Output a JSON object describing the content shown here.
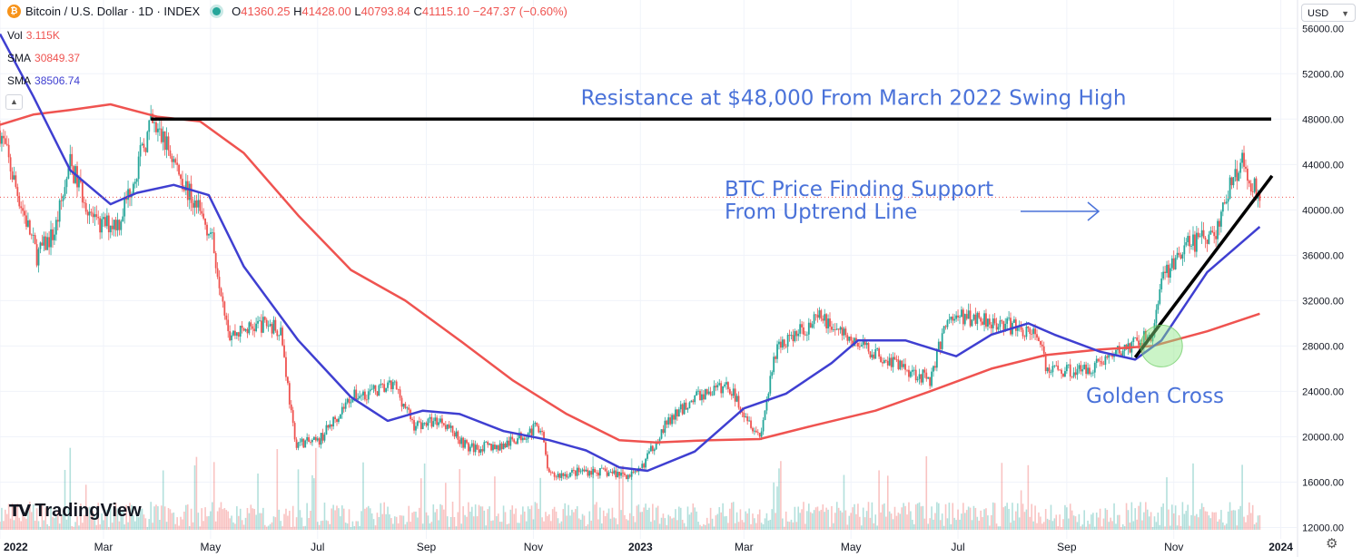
{
  "header": {
    "coin_glyph": "₿",
    "title": "Bitcoin / U.S. Dollar · 1D · INDEX",
    "ohlc": {
      "o_label": "O",
      "o": "41360.25",
      "h_label": "H",
      "h": "41428.00",
      "l_label": "L",
      "l": "40793.84",
      "c_label": "C",
      "c": "41115.10",
      "change": "−247.37 (−0.60%)"
    }
  },
  "legend": [
    {
      "label": "Vol",
      "value": "3.115K",
      "color": "#ef5350"
    },
    {
      "label": "SMA",
      "value": "30849.37",
      "color": "#ef5350"
    },
    {
      "label": "SMA",
      "value": "38506.74",
      "color": "#3f3fd1"
    }
  ],
  "currency": "USD",
  "branding": {
    "mark": "TV",
    "name": "TradingView"
  },
  "icons": {
    "coin": "bitcoin-icon",
    "status": "status-dot-icon",
    "collapse": "chevron-up-icon",
    "dropdown": "chevron-down-icon",
    "settings": "gear-icon"
  },
  "chart_data": {
    "type": "line",
    "x_range": [
      "2022-01-01",
      "2024-01-10"
    ],
    "y_range": [
      11000,
      58500
    ],
    "y_ticks": [
      12000,
      16000,
      20000,
      24000,
      28000,
      32000,
      36000,
      40000,
      44000,
      48000,
      52000,
      56000
    ],
    "y_tick_labels": [
      "12000.00",
      "16000.00",
      "20000.00",
      "24000.00",
      "28000.00",
      "32000.00",
      "36000.00",
      "40000.00",
      "44000.00",
      "48000.00",
      "52000.00",
      "56000.00"
    ],
    "x_ticks": [
      {
        "date": "2022-01-01",
        "label": "2022",
        "bold": true
      },
      {
        "date": "2022-03-01",
        "label": "Mar"
      },
      {
        "date": "2022-05-01",
        "label": "May"
      },
      {
        "date": "2022-07-01",
        "label": "Jul"
      },
      {
        "date": "2022-09-01",
        "label": "Sep"
      },
      {
        "date": "2022-11-01",
        "label": "Nov"
      },
      {
        "date": "2023-01-01",
        "label": "2023",
        "bold": true
      },
      {
        "date": "2023-03-01",
        "label": "Mar"
      },
      {
        "date": "2023-05-01",
        "label": "May"
      },
      {
        "date": "2023-07-01",
        "label": "Jul"
      },
      {
        "date": "2023-09-01",
        "label": "Sep"
      },
      {
        "date": "2023-11-01",
        "label": "Nov"
      },
      {
        "date": "2024-01-01",
        "label": "2024",
        "bold": true
      }
    ],
    "price_path": [
      [
        "2022-01-01",
        47000
      ],
      [
        "2022-01-10",
        42000
      ],
      [
        "2022-01-22",
        36000
      ],
      [
        "2022-02-01",
        38000
      ],
      [
        "2022-02-10",
        44000
      ],
      [
        "2022-02-25",
        38500
      ],
      [
        "2022-03-10",
        39000
      ],
      [
        "2022-03-28",
        47500
      ],
      [
        "2022-04-05",
        46000
      ],
      [
        "2022-04-20",
        41000
      ],
      [
        "2022-05-01",
        38000
      ],
      [
        "2022-05-12",
        29000
      ],
      [
        "2022-06-01",
        30000
      ],
      [
        "2022-06-10",
        29500
      ],
      [
        "2022-06-18",
        19500
      ],
      [
        "2022-07-01",
        19500
      ],
      [
        "2022-07-20",
        23500
      ],
      [
        "2022-08-14",
        24500
      ],
      [
        "2022-08-25",
        21000
      ],
      [
        "2022-09-10",
        21500
      ],
      [
        "2022-09-25",
        19000
      ],
      [
        "2022-10-15",
        19200
      ],
      [
        "2022-11-05",
        21000
      ],
      [
        "2022-11-10",
        16500
      ],
      [
        "2022-12-01",
        17000
      ],
      [
        "2022-12-30",
        16600
      ],
      [
        "2023-01-15",
        21000
      ],
      [
        "2023-02-01",
        23500
      ],
      [
        "2023-02-20",
        24500
      ],
      [
        "2023-03-10",
        20000
      ],
      [
        "2023-03-20",
        28000
      ],
      [
        "2023-04-14",
        30500
      ],
      [
        "2023-05-01",
        28500
      ],
      [
        "2023-05-20",
        27000
      ],
      [
        "2023-06-15",
        25000
      ],
      [
        "2023-06-25",
        30500
      ],
      [
        "2023-07-15",
        30500
      ],
      [
        "2023-08-16",
        29000
      ],
      [
        "2023-08-20",
        26000
      ],
      [
        "2023-09-10",
        25800
      ],
      [
        "2023-10-01",
        27500
      ],
      [
        "2023-10-20",
        29000
      ],
      [
        "2023-10-25",
        34000
      ],
      [
        "2023-11-10",
        37000
      ],
      [
        "2023-11-25",
        38000
      ],
      [
        "2023-12-05",
        43000
      ],
      [
        "2023-12-10",
        44000
      ],
      [
        "2023-12-20",
        41115
      ]
    ],
    "series": [
      {
        "name": "SMA",
        "color": "#ef5350",
        "points": [
          [
            "2022-01-01",
            47500
          ],
          [
            "2022-01-20",
            48400
          ],
          [
            "2022-02-10",
            48800
          ],
          [
            "2022-03-05",
            49300
          ],
          [
            "2022-04-01",
            48200
          ],
          [
            "2022-04-25",
            47800
          ],
          [
            "2022-05-20",
            45000
          ],
          [
            "2022-06-20",
            39500
          ],
          [
            "2022-07-20",
            34700
          ],
          [
            "2022-08-20",
            32000
          ],
          [
            "2022-09-20",
            28500
          ],
          [
            "2022-10-20",
            25000
          ],
          [
            "2022-11-20",
            22000
          ],
          [
            "2022-12-20",
            19700
          ],
          [
            "2023-01-10",
            19500
          ],
          [
            "2023-02-10",
            19700
          ],
          [
            "2023-03-10",
            19800
          ],
          [
            "2023-04-10",
            21000
          ],
          [
            "2023-05-15",
            22300
          ],
          [
            "2023-06-15",
            24000
          ],
          [
            "2023-07-20",
            26000
          ],
          [
            "2023-08-20",
            27200
          ],
          [
            "2023-09-20",
            27700
          ],
          [
            "2023-10-20",
            28000
          ],
          [
            "2023-11-20",
            29300
          ],
          [
            "2023-12-20",
            30849
          ]
        ]
      },
      {
        "name": "SMA",
        "color": "#3f3fd1",
        "points": [
          [
            "2022-01-01",
            55500
          ],
          [
            "2022-01-20",
            50000
          ],
          [
            "2022-02-10",
            43500
          ],
          [
            "2022-03-05",
            40500
          ],
          [
            "2022-03-20",
            41500
          ],
          [
            "2022-04-10",
            42200
          ],
          [
            "2022-04-30",
            41300
          ],
          [
            "2022-05-20",
            35000
          ],
          [
            "2022-06-20",
            28500
          ],
          [
            "2022-07-20",
            23500
          ],
          [
            "2022-08-10",
            21400
          ],
          [
            "2022-08-30",
            22300
          ],
          [
            "2022-09-20",
            22000
          ],
          [
            "2022-10-15",
            20500
          ],
          [
            "2022-11-10",
            19700
          ],
          [
            "2022-12-01",
            18800
          ],
          [
            "2022-12-20",
            17300
          ],
          [
            "2023-01-05",
            17000
          ],
          [
            "2023-02-01",
            18700
          ],
          [
            "2023-03-01",
            22500
          ],
          [
            "2023-03-25",
            23800
          ],
          [
            "2023-04-20",
            26500
          ],
          [
            "2023-05-05",
            28500
          ],
          [
            "2023-06-01",
            28500
          ],
          [
            "2023-06-30",
            27100
          ],
          [
            "2023-07-20",
            29000
          ],
          [
            "2023-08-10",
            30000
          ],
          [
            "2023-08-25",
            29000
          ],
          [
            "2023-09-20",
            27500
          ],
          [
            "2023-10-10",
            26800
          ],
          [
            "2023-10-25",
            28500
          ],
          [
            "2023-11-20",
            34500
          ],
          [
            "2023-12-20",
            38506
          ]
        ]
      }
    ],
    "annotations": {
      "resistance": {
        "value": 48000,
        "from": "2022-03-28",
        "to": "2024-01-10",
        "text": "Resistance at $48,000 From March 2022 Swing High"
      },
      "support_text": [
        "BTC Price Finding Support",
        "From Uptrend Line"
      ],
      "support_arrow": {
        "from": [
          "2023-07-25",
          41000
        ],
        "to": [
          "2023-10-20",
          41000
        ]
      },
      "uptrend_line": {
        "from": [
          "2023-10-10",
          27000
        ],
        "to": [
          "2023-12-27",
          43000
        ]
      },
      "golden_cross": {
        "center": [
          "2023-10-25",
          28000
        ],
        "text": "Golden Cross"
      }
    },
    "last_price": 41115.1
  }
}
